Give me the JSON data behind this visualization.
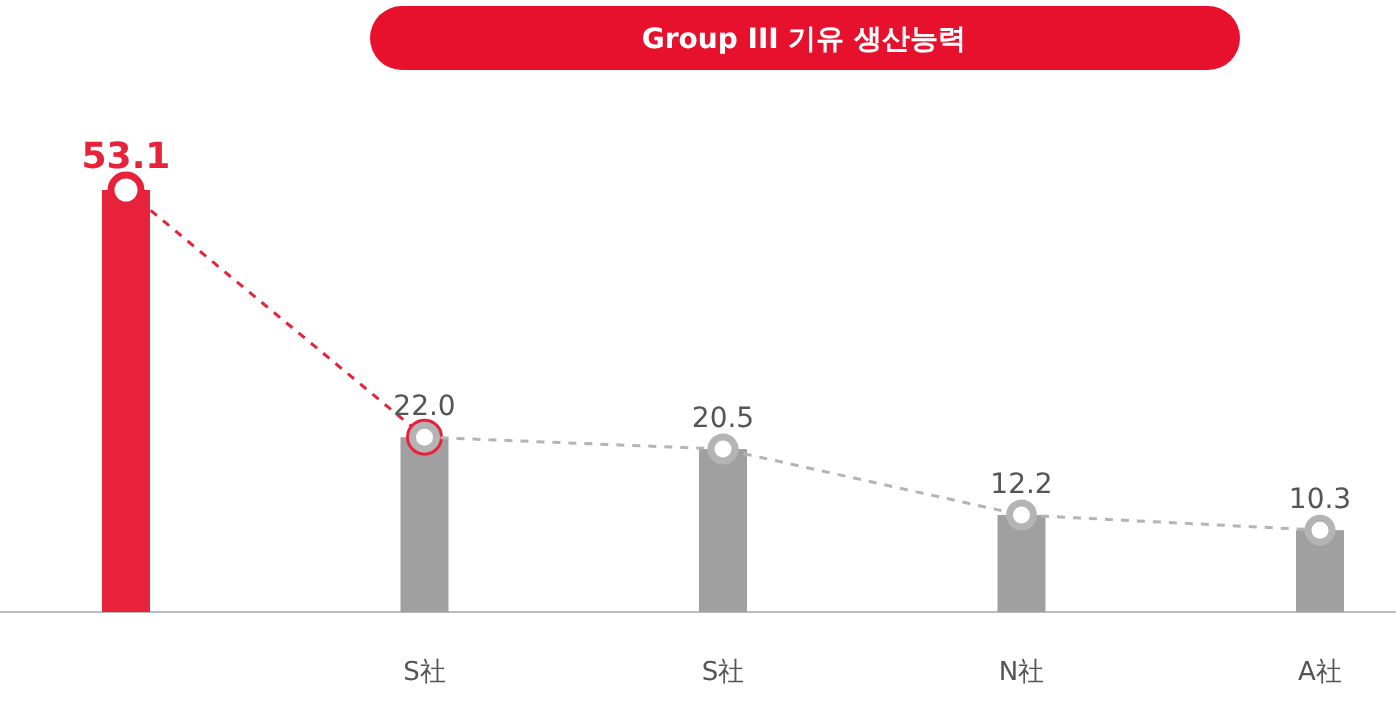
{
  "chart_data": {
    "type": "bar",
    "title": "Group III 기유 생산능력",
    "categories": [
      null,
      "S社",
      "S社",
      "N社",
      "A社"
    ],
    "series": [
      {
        "values": [
          53.1,
          22.0,
          20.5,
          12.2,
          10.3
        ],
        "value_labels": [
          "53.1",
          "22.0",
          "20.5",
          "12.2",
          "10.3"
        ],
        "colors": [
          "#e8223a",
          "#a0a0a0",
          "#a0a0a0",
          "#a0a0a0",
          "#a0a0a0"
        ]
      },
      {
        "type": "line",
        "color": "#e8223a",
        "values": [
          53.1,
          22.0,
          null,
          null,
          null
        ]
      },
      {
        "type": "line",
        "color": "#b4b4b4",
        "values": [
          null,
          22.0,
          20.5,
          12.2,
          10.3
        ]
      }
    ],
    "marker": "circle",
    "line_style": "dashed"
  }
}
